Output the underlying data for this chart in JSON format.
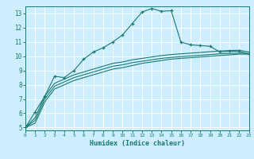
{
  "xlabel": "Humidex (Indice chaleur)",
  "ylabel": "",
  "bg_color": "#cceeff",
  "grid_color": "#ffffff",
  "line_color": "#1a7a6e",
  "xlim": [
    0,
    23
  ],
  "ylim": [
    4.8,
    13.5
  ],
  "xticks": [
    0,
    1,
    2,
    3,
    4,
    5,
    6,
    7,
    8,
    9,
    10,
    11,
    12,
    13,
    14,
    15,
    16,
    17,
    18,
    19,
    20,
    21,
    22,
    23
  ],
  "yticks": [
    5,
    6,
    7,
    8,
    9,
    10,
    11,
    12,
    13
  ],
  "series": {
    "main": {
      "x": [
        0,
        1,
        2,
        3,
        4,
        5,
        6,
        7,
        8,
        9,
        10,
        11,
        12,
        13,
        14,
        15,
        16,
        17,
        18,
        19,
        20,
        21,
        22,
        23
      ],
      "y": [
        5.0,
        6.1,
        7.2,
        8.6,
        8.5,
        9.0,
        9.8,
        10.3,
        10.6,
        11.0,
        11.5,
        12.3,
        13.1,
        13.35,
        13.15,
        13.2,
        11.0,
        10.8,
        10.75,
        10.7,
        10.3,
        10.35,
        10.35,
        10.15
      ]
    },
    "smooth1": {
      "x": [
        0,
        1,
        2,
        3,
        4,
        5,
        6,
        7,
        8,
        9,
        10,
        11,
        12,
        13,
        14,
        15,
        16,
        17,
        18,
        19,
        20,
        21,
        22,
        23
      ],
      "y": [
        5.0,
        5.3,
        6.8,
        7.7,
        8.0,
        8.3,
        8.5,
        8.7,
        8.9,
        9.1,
        9.2,
        9.35,
        9.5,
        9.6,
        9.7,
        9.8,
        9.85,
        9.9,
        9.95,
        10.0,
        10.05,
        10.1,
        10.15,
        10.15
      ]
    },
    "smooth2": {
      "x": [
        0,
        1,
        2,
        3,
        4,
        5,
        6,
        7,
        8,
        9,
        10,
        11,
        12,
        13,
        14,
        15,
        16,
        17,
        18,
        19,
        20,
        21,
        22,
        23
      ],
      "y": [
        5.0,
        5.5,
        7.0,
        7.9,
        8.2,
        8.5,
        8.7,
        8.9,
        9.1,
        9.3,
        9.4,
        9.55,
        9.65,
        9.75,
        9.85,
        9.92,
        9.97,
        10.02,
        10.07,
        10.12,
        10.17,
        10.2,
        10.22,
        10.2
      ]
    },
    "smooth3": {
      "x": [
        0,
        1,
        2,
        3,
        4,
        5,
        6,
        7,
        8,
        9,
        10,
        11,
        12,
        13,
        14,
        15,
        16,
        17,
        18,
        19,
        20,
        21,
        22,
        23
      ],
      "y": [
        5.0,
        5.7,
        7.2,
        8.1,
        8.4,
        8.7,
        8.9,
        9.1,
        9.3,
        9.5,
        9.6,
        9.75,
        9.85,
        9.95,
        10.05,
        10.12,
        10.17,
        10.22,
        10.27,
        10.32,
        10.37,
        10.4,
        10.42,
        10.3
      ]
    }
  }
}
